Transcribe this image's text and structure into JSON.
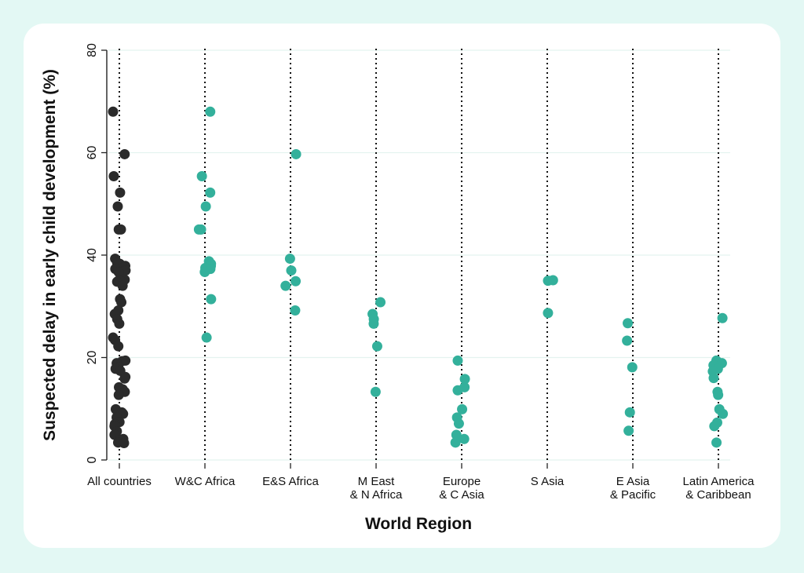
{
  "chart_data": {
    "type": "scatter",
    "xlabel": "World Region",
    "ylabel": "Suspected delay in early child development (%)",
    "ylim": [
      0,
      80
    ],
    "yticks": [
      0,
      20,
      40,
      60,
      80
    ],
    "grid": true,
    "colors": {
      "all": "#2b2b2b",
      "region": "#33b09b"
    },
    "categories": [
      {
        "label": [
          "All countries"
        ],
        "color": "all",
        "points": [
          68,
          59.7,
          55.4,
          52.2,
          49.5,
          45,
          45,
          39.3,
          38.5,
          38.3,
          37.9,
          37.5,
          37.3,
          37,
          36.8,
          36.7,
          35.2,
          35,
          34.9,
          34.8,
          34,
          31.4,
          30.8,
          29.2,
          28.5,
          27.5,
          26.6,
          23.9,
          23.4,
          22.2,
          19.4,
          19.3,
          18.9,
          18.1,
          17.8,
          17.4,
          16.2,
          15.9,
          14.2,
          13.8,
          13.4,
          13.3,
          12.7,
          9.9,
          9.3,
          9,
          8.3,
          7.4,
          7,
          6.6,
          5.6,
          4.9,
          4.1,
          3.9,
          3.4,
          3.3
        ]
      },
      {
        "label": [
          "W&C Africa"
        ],
        "color": "region",
        "points": [
          68,
          55.4,
          52.2,
          49.5,
          45,
          45,
          38.8,
          38.3,
          37.9,
          37.5,
          37.3,
          36.7,
          31.4,
          23.9
        ]
      },
      {
        "label": [
          "E&S Africa"
        ],
        "color": "region",
        "points": [
          59.7,
          39.3,
          37,
          34.9,
          34,
          29.2
        ]
      },
      {
        "label": [
          "M East",
          "& N Africa"
        ],
        "color": "region",
        "points": [
          30.8,
          28.5,
          27.5,
          26.6,
          22.2,
          13.3
        ]
      },
      {
        "label": [
          "Europe",
          "& C Asia"
        ],
        "color": "region",
        "points": [
          19.4,
          15.8,
          14.2,
          13.6,
          9.9,
          8.3,
          7.1,
          4.9,
          4.1,
          3.4
        ]
      },
      {
        "label": [
          "S Asia"
        ],
        "color": "region",
        "points": [
          35.1,
          35,
          28.7
        ]
      },
      {
        "label": [
          "E Asia",
          "& Pacific"
        ],
        "color": "region",
        "points": [
          26.7,
          23.3,
          18.1,
          9.3,
          5.7
        ]
      },
      {
        "label": [
          "Latin America",
          "& Caribbean"
        ],
        "color": "region",
        "points": [
          27.7,
          19.4,
          18.9,
          18.5,
          17.8,
          17.3,
          16,
          13.3,
          12.7,
          9.9,
          9,
          7.3,
          6.6,
          3.4
        ]
      }
    ]
  }
}
